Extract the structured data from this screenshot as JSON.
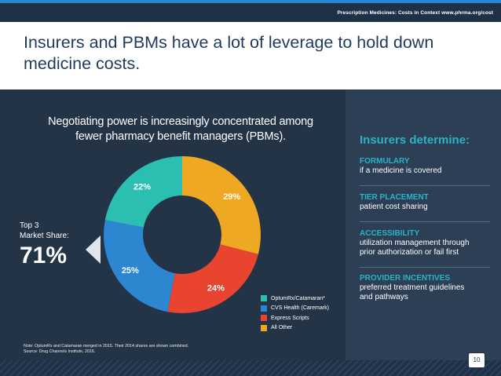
{
  "header": {
    "text": "Prescription Medicines: Costs in Context  www.phrma.org/cost"
  },
  "slide_title": "Insurers and PBMs have a lot of leverage to hold down medicine costs.",
  "subtitle_line1": "Negotiating power is increasingly concentrated among",
  "subtitle_line2": "fewer pharmacy benefit managers (PBMs).",
  "callout": {
    "label_line1": "Top 3",
    "label_line2": "Market Share:",
    "value": "71%"
  },
  "chart_data": {
    "type": "pie",
    "donut": true,
    "slices": [
      {
        "name": "OptumRx/Catamaran*",
        "value": 22,
        "label": "22%",
        "color": "#2bbfb2"
      },
      {
        "name": "CVS Health (Caremark)",
        "value": 25,
        "label": "25%",
        "color": "#2c86d0"
      },
      {
        "name": "Express Scripts",
        "value": 24,
        "label": "24%",
        "color": "#e8442f"
      },
      {
        "name": "All Other",
        "value": 29,
        "label": "29%",
        "color": "#efa821"
      }
    ],
    "legend_placement": "bottom-right"
  },
  "note_line1": "Note: OptumRx and Catamaran merged in 2015. Their 2014 shares are shown combined.",
  "note_line2": "Source: Drug Channels Institute, 2016.",
  "right": {
    "title": "Insurers determine:",
    "items": [
      {
        "title": "FORMULARY",
        "desc1": "if a medicine is covered",
        "desc2": ""
      },
      {
        "title": "TIER PLACEMENT",
        "desc1": "patient cost sharing",
        "desc2": ""
      },
      {
        "title": "ACCESSIBILITY",
        "desc1": "utilization management through",
        "desc2": "prior authorization or fail first"
      },
      {
        "title": "PROVIDER INCENTIVES",
        "desc1": "preferred treatment guidelines",
        "desc2": "and pathways"
      }
    ]
  },
  "page_number": "10"
}
